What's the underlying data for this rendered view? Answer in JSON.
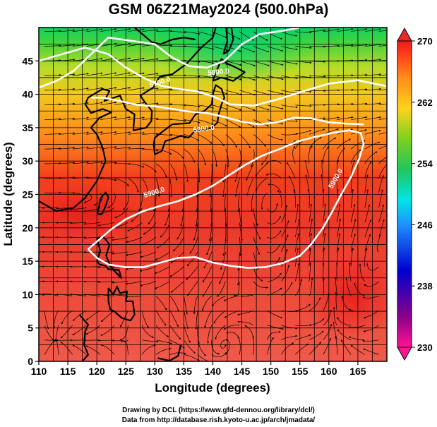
{
  "title": "GSM 06Z21May2024 (500.0hPa)",
  "x_axis": {
    "label": "Longitude (degrees)",
    "range": [
      110,
      170
    ],
    "ticks": [
      "110",
      "115",
      "120",
      "125",
      "130",
      "135",
      "140",
      "145",
      "150",
      "155",
      "160",
      "165"
    ]
  },
  "y_axis": {
    "label": "Latitude  (degrees)",
    "range": [
      0,
      50
    ],
    "ticks": [
      "0",
      "5",
      "10",
      "15",
      "20",
      "25",
      "30",
      "35",
      "40",
      "45"
    ]
  },
  "colorbar": {
    "range": [
      230,
      270
    ],
    "ticks": [
      "270",
      "262",
      "254",
      "246",
      "238",
      "230"
    ],
    "colors": [
      "#ff1493",
      "#8b008b",
      "#0000cd",
      "#1e90ff",
      "#00e5e5",
      "#22c55e",
      "#7cd11e",
      "#ffd21a",
      "#ff8c1a",
      "#ff3a1a",
      "#e81c1c"
    ]
  },
  "contours": {
    "labels": [
      "5700.0",
      "5800.0",
      "5800.0",
      "5900.0",
      "5900.0"
    ]
  },
  "credits": {
    "line1": "Drawing by DCL (https://www.gfd-dennou.org/library/dcl/)",
    "line2": "Data from http://database.rish.kyoto-u.ac.jp/arch/jmadata/"
  }
}
